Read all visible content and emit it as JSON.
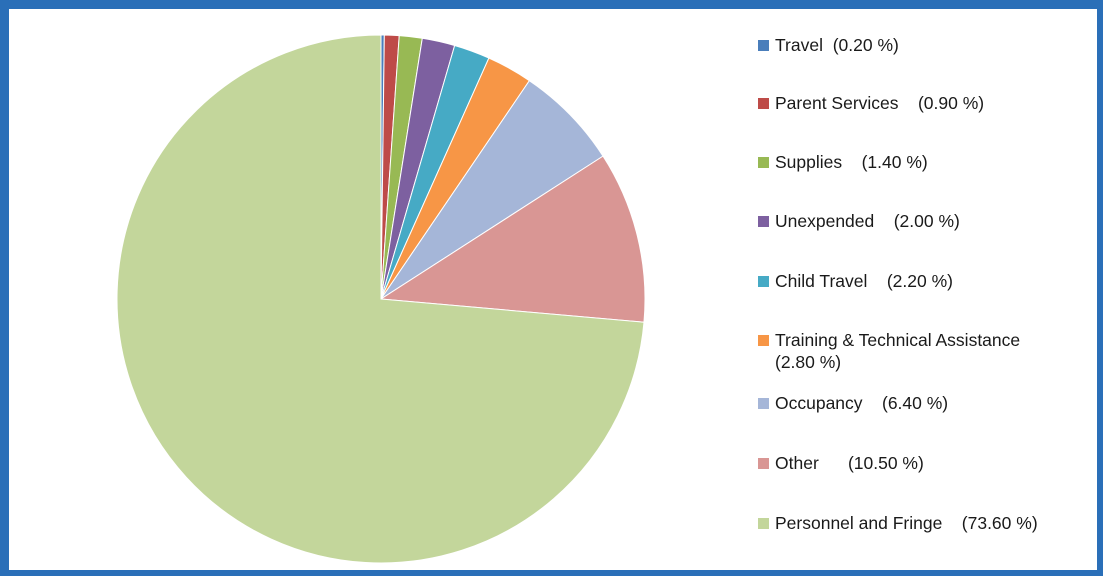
{
  "chart_data": {
    "type": "pie",
    "title": "",
    "legend_position": "right",
    "slices": [
      {
        "label": "Travel",
        "value": 0.2,
        "display": "Travel  (0.20 %)",
        "color": "#4a7ebb"
      },
      {
        "label": "Parent Services",
        "value": 0.9,
        "display": "Parent Services    (0.90 %)",
        "color": "#be4b48"
      },
      {
        "label": "Supplies",
        "value": 1.4,
        "display": "Supplies    (1.40 %)",
        "color": "#98b954"
      },
      {
        "label": "Unexpended",
        "value": 2.0,
        "display": "Unexpended    (2.00 %)",
        "color": "#7d60a0"
      },
      {
        "label": "Child Travel",
        "value": 2.2,
        "display": "Child Travel    (2.20 %)",
        "color": "#46aac5"
      },
      {
        "label": "Training & Technical Assistance",
        "value": 2.8,
        "display": "Training & Technical Assistance\n(2.80 %)",
        "color": "#f79646"
      },
      {
        "label": "Occupancy",
        "value": 6.4,
        "display": "Occupancy    (6.40 %)",
        "color": "#a5b6d8"
      },
      {
        "label": "Other",
        "value": 10.5,
        "display": "Other      (10.50 %)",
        "color": "#d99694"
      },
      {
        "label": "Personnel and Fringe",
        "value": 73.6,
        "display": "Personnel and Fringe    (73.60 %)",
        "color": "#c3d69b"
      }
    ]
  }
}
